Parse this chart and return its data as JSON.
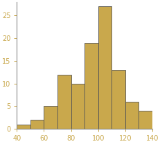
{
  "bin_edges": [
    40,
    50,
    60,
    70,
    80,
    90,
    100,
    110,
    120,
    130,
    140
  ],
  "bar_heights": [
    1,
    2,
    5,
    12,
    10,
    19,
    27,
    13,
    6,
    4
  ],
  "bar_color": "#C9A84C",
  "edge_color": "#555555",
  "xlim": [
    40,
    140
  ],
  "ylim": [
    0,
    28
  ],
  "xticks": [
    40,
    60,
    80,
    100,
    120,
    140
  ],
  "yticks": [
    0,
    5,
    10,
    15,
    20,
    25
  ],
  "tick_label_color": "#C9A84C",
  "spine_color": "#888888",
  "background_color": "#ffffff"
}
